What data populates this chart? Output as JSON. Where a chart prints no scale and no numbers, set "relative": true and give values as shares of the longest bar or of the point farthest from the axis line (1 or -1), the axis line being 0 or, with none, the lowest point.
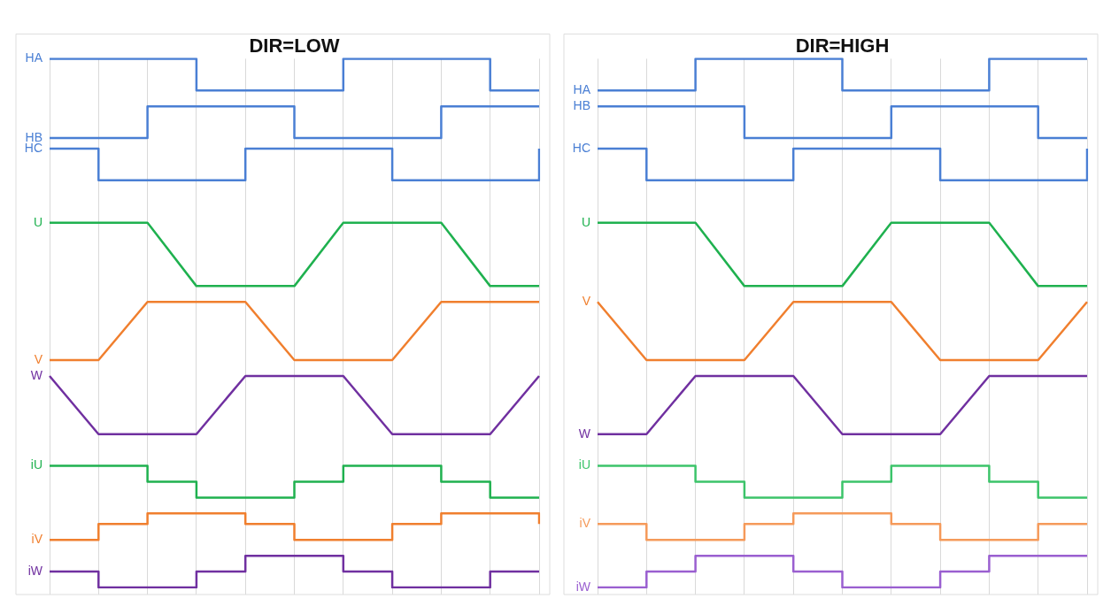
{
  "chart_data": [
    {
      "type": "line",
      "title": "DIR=LOW",
      "relative": true,
      "grid": "x",
      "marker": "none",
      "categories": [
        null,
        null,
        null,
        null,
        null,
        null,
        null,
        null,
        null,
        null,
        null
      ],
      "series": [
        {
          "name": "HA",
          "type": "step",
          "color": "#4a7fd4",
          "values": [
            1,
            1,
            1,
            0.94,
            0.94,
            0.94,
            1,
            1,
            1,
            0.94,
            0.94
          ]
        },
        {
          "name": "HB",
          "type": "step",
          "color": "#4a7fd4",
          "values": [
            0.85,
            0.85,
            0.91,
            0.91,
            0.91,
            0.85,
            0.85,
            0.85,
            0.91,
            0.91,
            0.91
          ]
        },
        {
          "name": "HC",
          "type": "step",
          "color": "#4a7fd4",
          "values": [
            0.83,
            0.77,
            0.77,
            0.77,
            0.83,
            0.83,
            0.83,
            0.77,
            0.77,
            0.77,
            0.83
          ]
        },
        {
          "name": "U",
          "type": "line",
          "color": "#1fb14f",
          "values": [
            0.69,
            0.69,
            0.69,
            0.57,
            0.57,
            0.57,
            0.69,
            0.69,
            0.69,
            0.57,
            0.57
          ]
        },
        {
          "name": "V",
          "type": "line",
          "color": "#f07f2e",
          "values": [
            0.43,
            0.43,
            0.54,
            0.54,
            0.54,
            0.43,
            0.43,
            0.43,
            0.54,
            0.54,
            0.54
          ]
        },
        {
          "name": "W",
          "type": "line",
          "color": "#7030a0",
          "values": [
            0.4,
            0.29,
            0.29,
            0.29,
            0.4,
            0.4,
            0.4,
            0.29,
            0.29,
            0.29,
            0.4
          ]
        },
        {
          "name": "iU",
          "type": "step",
          "color": "#1fb14f",
          "values": [
            0.23,
            0.23,
            0.2,
            0.17,
            0.17,
            0.2,
            0.23,
            0.23,
            0.2,
            0.17,
            0.17
          ]
        },
        {
          "name": "iV",
          "type": "step",
          "color": "#f07f2e",
          "values": [
            0.09,
            0.12,
            0.14,
            0.14,
            0.12,
            0.09,
            0.09,
            0.12,
            0.14,
            0.14,
            0.12
          ]
        },
        {
          "name": "iW",
          "type": "step",
          "color": "#7030a0",
          "values": [
            0.03,
            0,
            0,
            0.03,
            0.06,
            0.06,
            0.03,
            0,
            0,
            0.03,
            0.03
          ]
        }
      ]
    },
    {
      "type": "line",
      "title": "DIR=HIGH",
      "relative": true,
      "grid": "x",
      "marker": "none",
      "categories": [
        null,
        null,
        null,
        null,
        null,
        null,
        null,
        null,
        null,
        null,
        null
      ],
      "series": [
        {
          "name": "HA",
          "type": "step",
          "color": "#4a7fd4",
          "values": [
            0.94,
            0.94,
            1,
            1,
            1,
            0.94,
            0.94,
            0.94,
            1,
            1,
            1
          ]
        },
        {
          "name": "HB",
          "type": "step",
          "color": "#4a7fd4",
          "values": [
            0.91,
            0.91,
            0.91,
            0.85,
            0.85,
            0.85,
            0.91,
            0.91,
            0.91,
            0.85,
            0.85
          ]
        },
        {
          "name": "HC",
          "type": "step",
          "color": "#4a7fd4",
          "values": [
            0.83,
            0.77,
            0.77,
            0.77,
            0.83,
            0.83,
            0.83,
            0.77,
            0.77,
            0.77,
            0.83
          ]
        },
        {
          "name": "U",
          "type": "line",
          "color": "#1fb14f",
          "values": [
            0.69,
            0.69,
            0.69,
            0.57,
            0.57,
            0.57,
            0.69,
            0.69,
            0.69,
            0.57,
            0.57
          ]
        },
        {
          "name": "V",
          "type": "line",
          "color": "#f07f2e",
          "values": [
            0.54,
            0.43,
            0.43,
            0.43,
            0.54,
            0.54,
            0.54,
            0.43,
            0.43,
            0.43,
            0.54
          ]
        },
        {
          "name": "W",
          "type": "line",
          "color": "#7030a0",
          "values": [
            0.29,
            0.29,
            0.4,
            0.4,
            0.4,
            0.29,
            0.29,
            0.29,
            0.4,
            0.4,
            0.4
          ]
        },
        {
          "name": "iU",
          "type": "step",
          "color": "#3cc46a",
          "values": [
            0.23,
            0.23,
            0.2,
            0.17,
            0.17,
            0.2,
            0.23,
            0.23,
            0.2,
            0.17,
            0.17
          ]
        },
        {
          "name": "iV",
          "type": "step",
          "color": "#f59a5a",
          "values": [
            0.12,
            0.09,
            0.09,
            0.12,
            0.14,
            0.14,
            0.12,
            0.09,
            0.09,
            0.12,
            0.12
          ]
        },
        {
          "name": "iW",
          "type": "step",
          "color": "#9a5fd0",
          "values": [
            0,
            0.03,
            0.06,
            0.06,
            0.03,
            0,
            0,
            0.03,
            0.06,
            0.06,
            0.06
          ]
        }
      ]
    }
  ]
}
